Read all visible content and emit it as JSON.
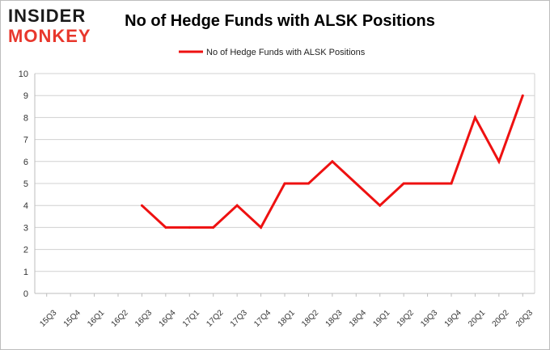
{
  "logo": {
    "line1": "INSIDER",
    "line2": "MONKEY",
    "color_dark": "#1a1a1a",
    "color_accent": "#e8372c"
  },
  "chart_data": {
    "type": "line",
    "title": "No of Hedge Funds with ALSK Positions",
    "xlabel": "",
    "ylabel": "",
    "categories": [
      "15Q3",
      "15Q4",
      "16Q1",
      "16Q2",
      "16Q3",
      "16Q4",
      "17Q1",
      "17Q2",
      "17Q3",
      "17Q4",
      "18Q1",
      "18Q2",
      "18Q3",
      "18Q4",
      "19Q1",
      "19Q2",
      "19Q3",
      "19Q4",
      "20Q1",
      "20Q2",
      "20Q3"
    ],
    "series": [
      {
        "name": "No of Hedge Funds with ALSK Positions",
        "color": "#ee1111",
        "values": [
          null,
          null,
          null,
          null,
          4,
          3,
          3,
          3,
          4,
          3,
          5,
          5,
          6,
          5,
          4,
          5,
          5,
          5,
          8,
          6,
          9
        ]
      }
    ],
    "ylim": [
      0,
      10
    ],
    "yticks": [
      0,
      1,
      2,
      3,
      4,
      5,
      6,
      7,
      8,
      9,
      10
    ],
    "grid": true,
    "legend_position": "top-center"
  }
}
